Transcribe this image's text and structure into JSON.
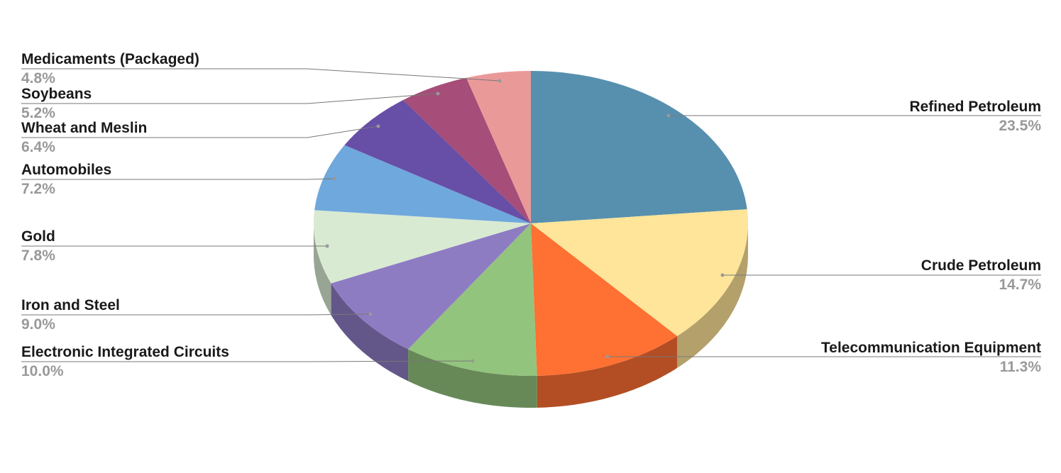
{
  "chart_data": {
    "type": "pie",
    "style": "3d",
    "start": "top, clockwise",
    "slices": [
      {
        "label": "Refined Petroleum",
        "value": 23.5,
        "display": "23.5%",
        "color": "#5790AF"
      },
      {
        "label": "Crude Petroleum",
        "value": 14.7,
        "display": "14.7%",
        "color": "#FFE599"
      },
      {
        "label": "Telecommunication Equipment",
        "value": 11.3,
        "display": "11.3%",
        "color": "#FF7033"
      },
      {
        "label": "Electronic Integrated Circuits",
        "value": 10.0,
        "display": "10.0%",
        "color": "#93C47D"
      },
      {
        "label": "Iron and Steel",
        "value": 9.0,
        "display": "9.0%",
        "color": "#8E7CC3"
      },
      {
        "label": "Gold",
        "value": 7.8,
        "display": "7.8%",
        "color": "#D9EAD3"
      },
      {
        "label": "Automobiles",
        "value": 7.2,
        "display": "7.2%",
        "color": "#6FA8DC"
      },
      {
        "label": "Wheat and Meslin",
        "value": 6.4,
        "display": "6.4%",
        "color": "#674EA7"
      },
      {
        "label": "Soybeans",
        "value": 5.2,
        "display": "5.2%",
        "color": "#A64D79"
      },
      {
        "label": "Medicaments (Packaged)",
        "value": 4.8,
        "display": "4.8%",
        "color": "#EA9999"
      }
    ],
    "label_position": "outside with leader lines",
    "legend": "none"
  }
}
